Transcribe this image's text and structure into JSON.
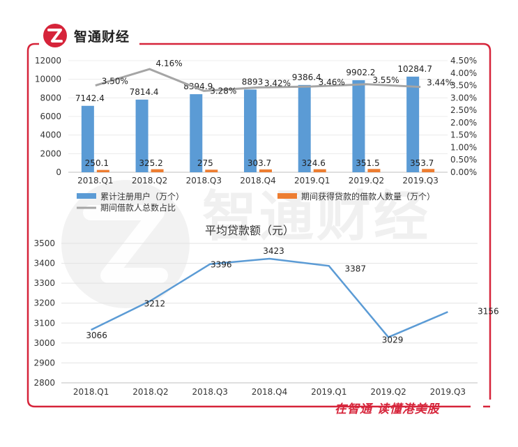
{
  "brand": {
    "name": "智通财经",
    "footer": "在智通  读懂港美股",
    "watermark": "智通财经"
  },
  "colors": {
    "frame": "#d6243a",
    "bar_users": "#5b9bd5",
    "bar_borrowers": "#ed7d31",
    "line_ratio": "#a5a5a5",
    "line_avg": "#5b9bd5"
  },
  "chart_data": [
    {
      "type": "bar",
      "categories": [
        "2018.Q1",
        "2018.Q2",
        "2018.Q3",
        "2018.Q4",
        "2019.Q1",
        "2019.Q2",
        "2019.Q3"
      ],
      "series": [
        {
          "name": "累计注册用户（万个）",
          "type": "bar",
          "axis": "left",
          "values": [
            7142.4,
            7814.4,
            8394.9,
            8893,
            9386.4,
            9902.2,
            10284.7
          ],
          "labels": [
            "7142.4",
            "7814.4",
            "8394.9",
            "8893",
            "9386.4",
            "9902.2",
            "10284.7"
          ]
        },
        {
          "name": "期间获得贷款的借款人数量（万个）",
          "type": "bar",
          "axis": "left",
          "values": [
            250.1,
            325.2,
            275,
            303.7,
            324.6,
            351.5,
            353.7
          ],
          "labels": [
            "250.1",
            "325.2",
            "275",
            "303.7",
            "324.6",
            "351.5",
            "353.7"
          ]
        },
        {
          "name": "期间借款人总数占比",
          "type": "line",
          "axis": "right",
          "values": [
            3.5,
            4.16,
            3.28,
            3.42,
            3.46,
            3.55,
            3.44
          ],
          "labels": [
            "3.50%",
            "4.16%",
            "3.28%",
            "3.42%",
            "3.46%",
            "3.55%",
            "3.44%"
          ]
        }
      ],
      "ylim": [
        0,
        12000
      ],
      "yticks": [
        "0",
        "2000",
        "4000",
        "6000",
        "8000",
        "10000",
        "12000"
      ],
      "y2lim": [
        0,
        4.5
      ],
      "y2ticks": [
        "0.00%",
        "0.50%",
        "1.00%",
        "1.50%",
        "2.00%",
        "2.50%",
        "3.00%",
        "3.50%",
        "4.00%",
        "4.50%"
      ],
      "legend": "bottom"
    },
    {
      "type": "line",
      "title": "平均贷款额（元）",
      "categories": [
        "2018.Q1",
        "2018.Q2",
        "2018.Q3",
        "2018.Q4",
        "2019.Q1",
        "2019.Q2",
        "2019.Q3"
      ],
      "values": [
        3066,
        3212,
        3396,
        3423,
        3387,
        3029,
        3156
      ],
      "labels": [
        "3066",
        "3212",
        "3396",
        "3423",
        "3387",
        "3029",
        "3156"
      ],
      "ylim": [
        2800,
        3500
      ],
      "yticks": [
        "2800",
        "2900",
        "3000",
        "3100",
        "3200",
        "3300",
        "3400",
        "3500"
      ],
      "grid": true
    }
  ]
}
